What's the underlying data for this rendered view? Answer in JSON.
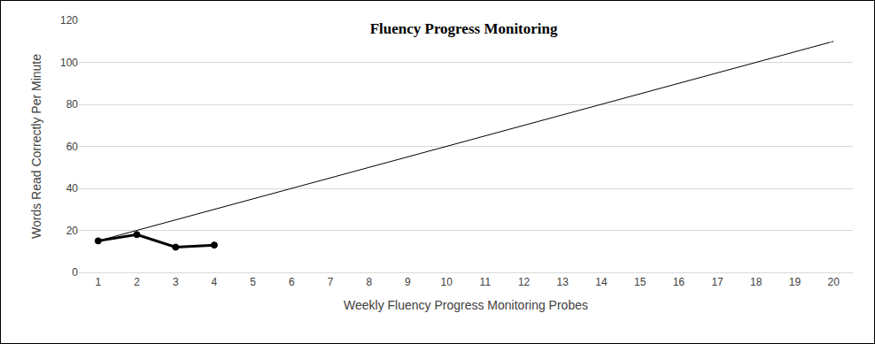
{
  "chart_data": {
    "type": "line",
    "title": "Fluency Progress Monitoring",
    "x_label": "Weekly Fluency Progress Monitoring Probes",
    "y_label": "Words Read Correctly Per Minute",
    "series": [
      {
        "x": [
          1,
          20
        ],
        "values": [
          15,
          110
        ],
        "color": "#000000",
        "marker": "circle-open",
        "line_style": "solid"
      },
      {
        "x": [
          1,
          2,
          3,
          4
        ],
        "values": [
          15,
          18,
          12,
          13
        ],
        "color": "#000000",
        "marker": "circle",
        "line_style": "solid"
      }
    ],
    "xlim": [
      0.5,
      20.5
    ],
    "xticks": [
      1,
      2,
      3,
      4,
      5,
      6,
      7,
      8,
      9,
      10,
      11,
      12,
      13,
      14,
      15,
      16,
      17,
      18,
      19,
      20
    ],
    "ylim": [
      0,
      120
    ],
    "yticks": [
      0,
      20,
      40,
      60,
      80,
      100,
      120
    ],
    "grid": true
  }
}
